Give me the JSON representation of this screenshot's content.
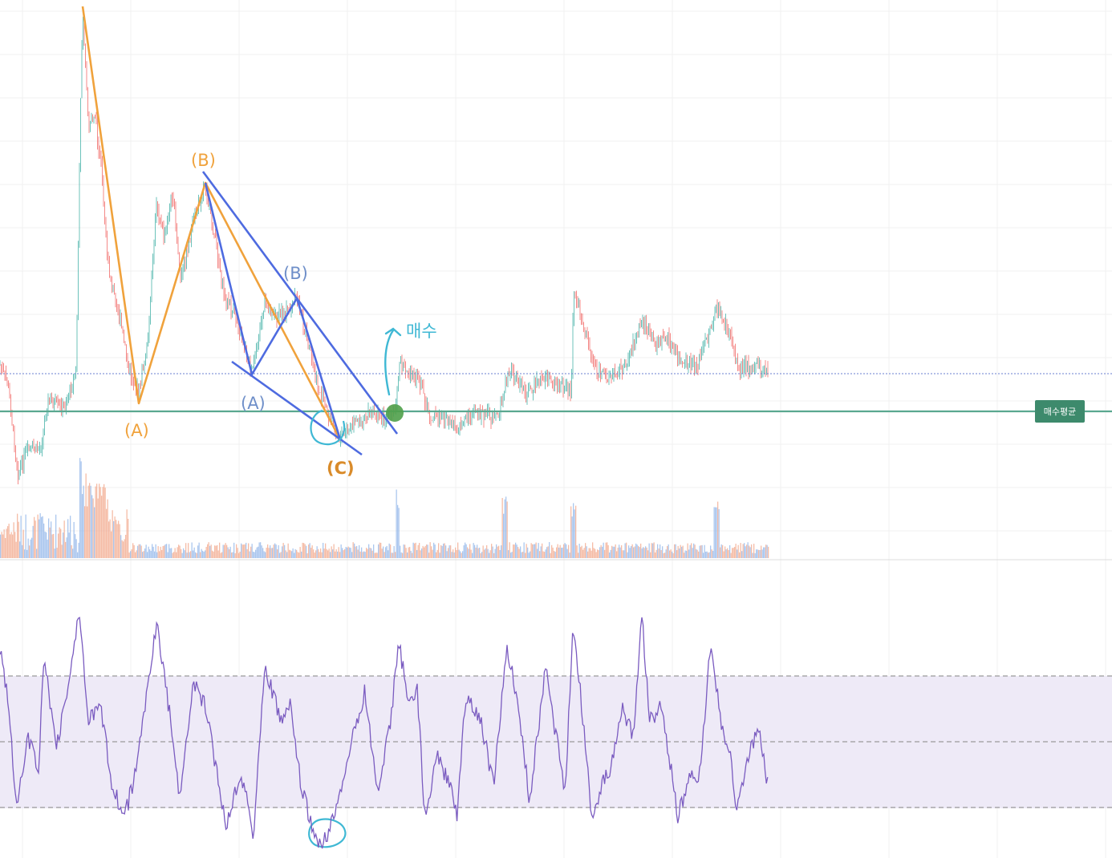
{
  "chart_data": {
    "type": "line",
    "panels": [
      "price-candlestick-with-volume",
      "rsi-oscillator"
    ],
    "price_annotations": {
      "orange_wave_labels": [
        "(A)",
        "(B)",
        "(C)"
      ],
      "blue_wave_labels": [
        "(A)",
        "(B)"
      ],
      "buy_label": "매수",
      "avg_price_badge": "매수평균"
    },
    "rsi_band": {
      "levels": [
        "upper",
        "middle",
        "lower"
      ],
      "shaded": true
    },
    "grid": true
  },
  "colors": {
    "orange_wave": "#f0a23c",
    "blue_wave": "#4e6be0",
    "blue_label": "#6f8fc9",
    "cyan_annotation": "#3fb8d4",
    "avg_line": "#5aa890",
    "avg_badge": "#3d8a6c",
    "buy_dot": "#4fa04a",
    "rsi_line": "#7a5bc0",
    "rsi_band_fill": "#eeeaf7",
    "up_candle": "#26a69a",
    "down_candle": "#ef5350"
  }
}
